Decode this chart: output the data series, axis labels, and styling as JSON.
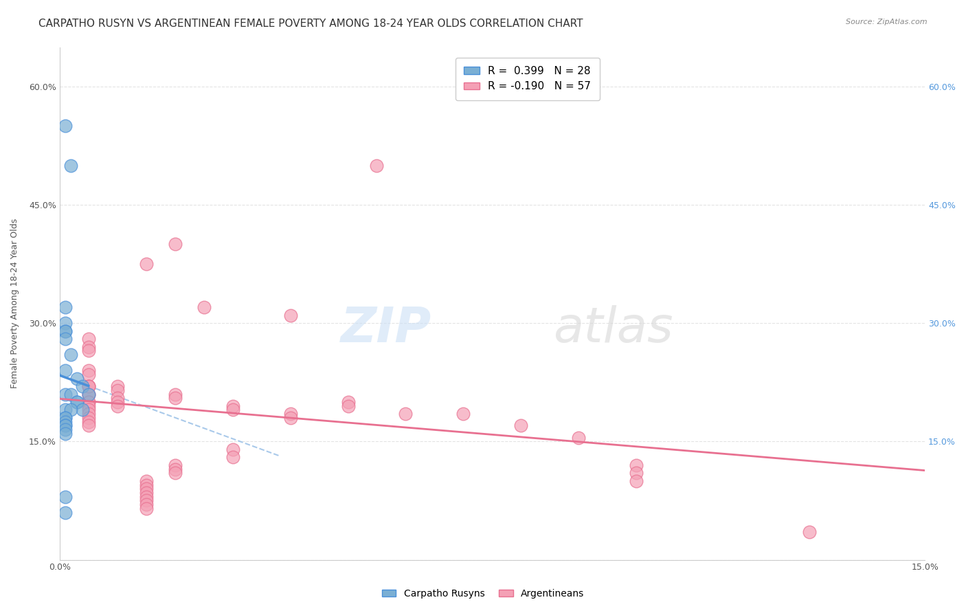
{
  "title": "CARPATHO RUSYN VS ARGENTINEAN FEMALE POVERTY AMONG 18-24 YEAR OLDS CORRELATION CHART",
  "source": "Source: ZipAtlas.com",
  "ylabel": "Female Poverty Among 18-24 Year Olds",
  "xlim": [
    0.0,
    0.15
  ],
  "ylim": [
    0.0,
    0.65
  ],
  "y_ticks": [
    0.0,
    0.15,
    0.3,
    0.45,
    0.6
  ],
  "blue_color": "#7aafd4",
  "pink_color": "#f4a0b5",
  "blue_line_color": "#4a90d9",
  "pink_line_color": "#e87090",
  "blue_dash_color": "#a0c4e8",
  "grid_color": "#d8d8d8",
  "watermark_zip": "ZIP",
  "watermark_atlas": "atlas",
  "carpatho_x": [
    0.001,
    0.002,
    0.001,
    0.001,
    0.001,
    0.001,
    0.001,
    0.002,
    0.001,
    0.003,
    0.004,
    0.001,
    0.002,
    0.005,
    0.003,
    0.003,
    0.004,
    0.001,
    0.002,
    0.001,
    0.001,
    0.001,
    0.001,
    0.001,
    0.001,
    0.001,
    0.001,
    0.001
  ],
  "carpatho_y": [
    0.55,
    0.5,
    0.32,
    0.3,
    0.29,
    0.29,
    0.28,
    0.26,
    0.24,
    0.23,
    0.22,
    0.21,
    0.21,
    0.21,
    0.2,
    0.2,
    0.19,
    0.19,
    0.19,
    0.18,
    0.18,
    0.175,
    0.17,
    0.17,
    0.165,
    0.16,
    0.08,
    0.06
  ],
  "argentinean_x": [
    0.055,
    0.02,
    0.015,
    0.025,
    0.04,
    0.005,
    0.005,
    0.005,
    0.005,
    0.005,
    0.005,
    0.005,
    0.005,
    0.005,
    0.005,
    0.005,
    0.005,
    0.005,
    0.005,
    0.005,
    0.005,
    0.005,
    0.01,
    0.01,
    0.01,
    0.01,
    0.01,
    0.02,
    0.02,
    0.03,
    0.03,
    0.04,
    0.04,
    0.05,
    0.05,
    0.06,
    0.07,
    0.08,
    0.09,
    0.1,
    0.1,
    0.1,
    0.03,
    0.03,
    0.02,
    0.02,
    0.02,
    0.015,
    0.015,
    0.015,
    0.015,
    0.015,
    0.015,
    0.015,
    0.015,
    0.13,
    0.005
  ],
  "argentinean_y": [
    0.5,
    0.4,
    0.375,
    0.32,
    0.31,
    0.28,
    0.27,
    0.265,
    0.24,
    0.235,
    0.22,
    0.22,
    0.21,
    0.21,
    0.2,
    0.2,
    0.195,
    0.19,
    0.185,
    0.18,
    0.175,
    0.17,
    0.22,
    0.215,
    0.205,
    0.2,
    0.195,
    0.21,
    0.205,
    0.195,
    0.19,
    0.185,
    0.18,
    0.2,
    0.195,
    0.185,
    0.185,
    0.17,
    0.155,
    0.12,
    0.11,
    0.1,
    0.14,
    0.13,
    0.12,
    0.115,
    0.11,
    0.1,
    0.095,
    0.09,
    0.085,
    0.08,
    0.075,
    0.07,
    0.065,
    0.035,
    0.22
  ],
  "background_color": "#ffffff",
  "title_fontsize": 11,
  "axis_fontsize": 9,
  "tick_fontsize": 9
}
